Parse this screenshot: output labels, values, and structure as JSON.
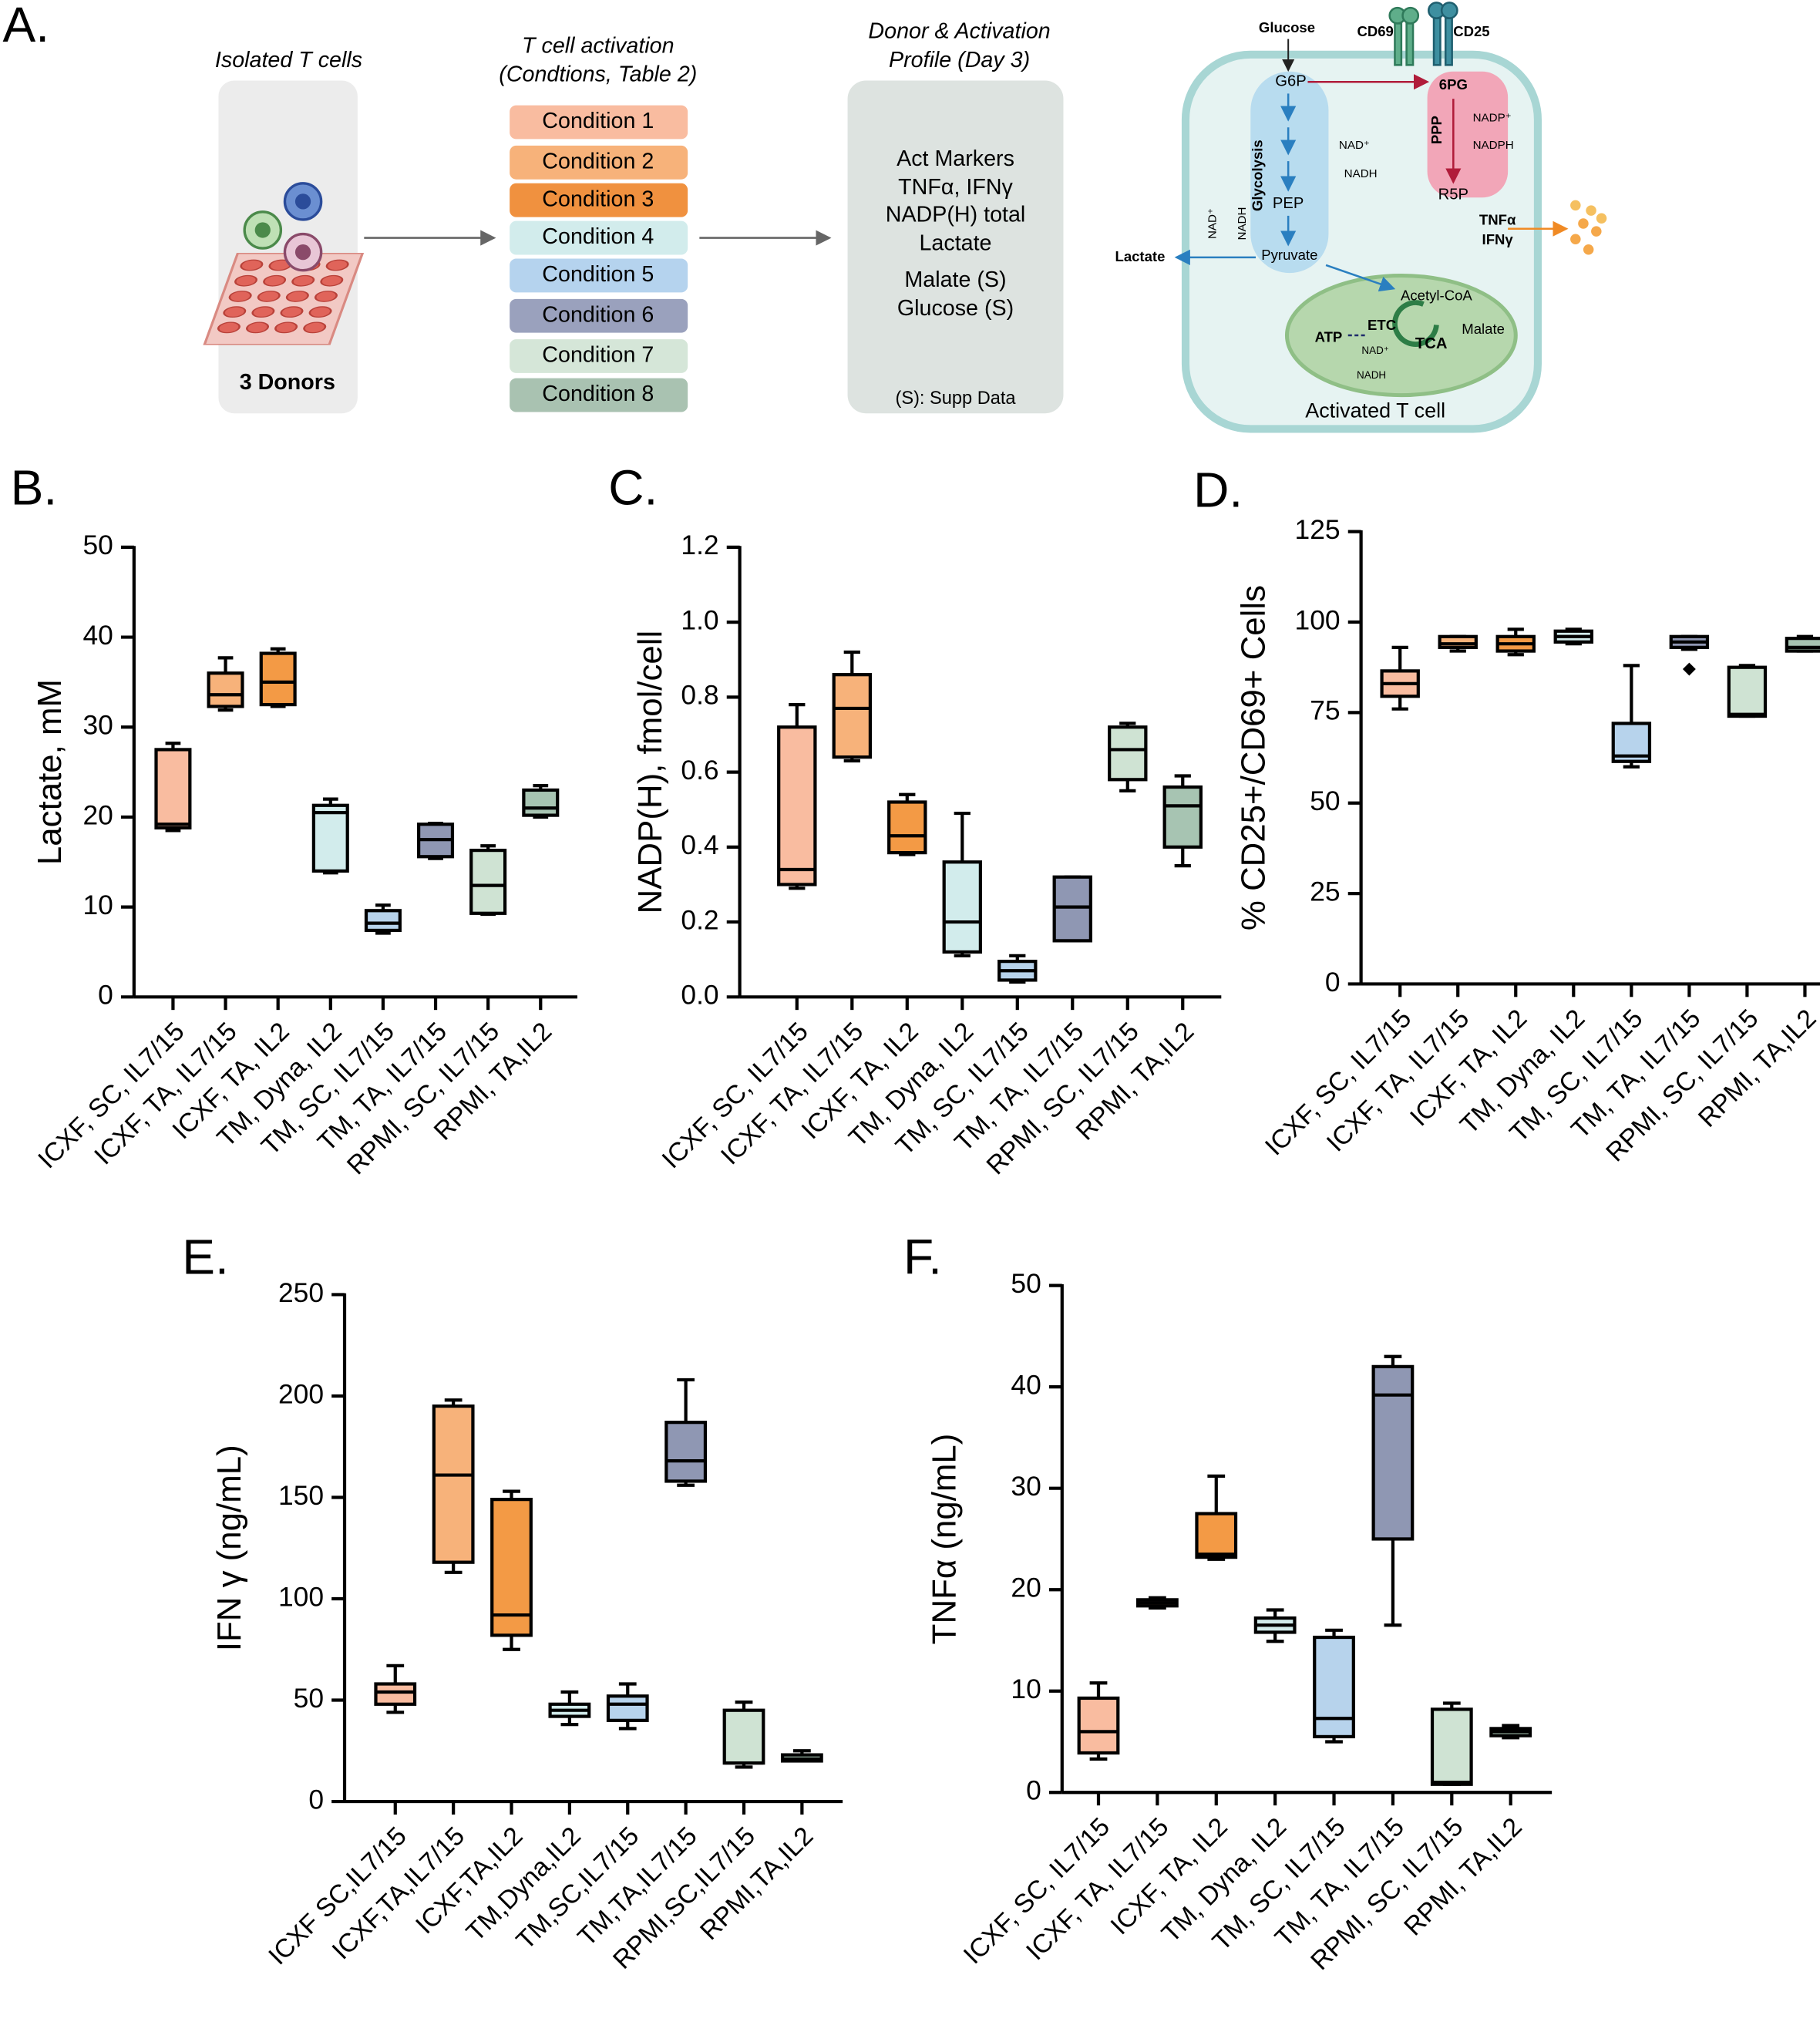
{
  "panel_a": {
    "label": "A.",
    "isolated_title": "Isolated T cells",
    "donors": "3 Donors",
    "activation_title": [
      "T cell activation",
      "(Condtions, Table 2)"
    ],
    "conditions": [
      "Condition 1",
      "Condition 2",
      "Condition 3",
      "Condition 4",
      "Condition 5",
      "Condition 6",
      "Condition 7",
      "Condition 8"
    ],
    "profile_title": [
      "Donor & Activation",
      "Profile (Day 3)"
    ],
    "profile_items": [
      "Act Markers",
      "TNFα, IFNγ",
      "NADP(H) total",
      "Lactate",
      "Malate (S)",
      "Glucose (S)"
    ],
    "profile_note": "(S): Supp Data",
    "cell": {
      "glucose": "Glucose",
      "cd69": "CD69",
      "cd25": "CD25",
      "g6p": "G6P",
      "pg6": "6PG",
      "ppp": "PPP",
      "nadp_plus": "NADP⁺",
      "nadph": "NADPH",
      "nad_plus_1": "NAD⁺",
      "nadh_1": "NADH",
      "glycolysis": "Glycolysis",
      "pep": "PEP",
      "r5p": "R5P",
      "tnfa": "TNFα",
      "ifng": "IFNγ",
      "lactate": "Lactate",
      "pyruvate": "Pyruvate",
      "nad_plus_2": "NAD⁺",
      "nadh_2": "NADH",
      "acetyl_coa": "Acetyl-CoA",
      "malate": "Malate",
      "etc": "ETC",
      "atp": "ATP",
      "tca": "TCA",
      "nad_plus_3": "NAD⁺",
      "nadh_3": "NADH",
      "title": "Activated T cell"
    }
  },
  "chart_data": [
    {
      "type": "box",
      "label": "B.",
      "ylabel": "Lactate, mM",
      "categories": [
        "ICXF, SC, IL7/15",
        "ICXF, TA, IL7/15",
        "ICXF, TA, IL2",
        "TM, Dyna, IL2",
        "TM, SC, IL7/15",
        "TM, TA, IL7/15",
        "RPMI, SC, IL7/15",
        "RPMI, TA,IL2"
      ],
      "colors": [
        "#f9bca0",
        "#f7b27a",
        "#f39a45",
        "#d2ecec",
        "#b7d3ec",
        "#8f97b3",
        "#cfe3d3",
        "#a7c4b2"
      ],
      "min": [
        18.5,
        31.9,
        32.3,
        13.8,
        7.1,
        15.4,
        9.2,
        20
      ],
      "q1": [
        18.8,
        32.3,
        32.5,
        14,
        7.4,
        15.6,
        9.3,
        20.2
      ],
      "median": [
        19.2,
        33.6,
        35,
        20.5,
        8.2,
        17.5,
        12.4,
        21
      ],
      "q3": [
        27.5,
        36,
        38.2,
        21.3,
        9.6,
        19.2,
        16.3,
        23
      ],
      "max": [
        28.2,
        37.7,
        38.7,
        22,
        10.2,
        19.3,
        16.8,
        23.5
      ],
      "ylim": [
        0,
        50
      ],
      "yticks": [
        0,
        10,
        20,
        30,
        40,
        50
      ]
    },
    {
      "type": "box",
      "label": "C.",
      "ylabel": "NADP(H), fmol/cell",
      "categories": [
        "ICXF, SC, IL7/15",
        "ICXF, TA, IL7/15",
        "ICXF, TA, IL2",
        "TM, Dyna, IL2",
        "TM, SC, IL7/15",
        "TM, TA, IL7/15",
        "RPMI, SC, IL7/15",
        "RPMI, TA,IL2"
      ],
      "colors": [
        "#f9bca0",
        "#f7b27a",
        "#f39a45",
        "#d2ecec",
        "#b7d3ec",
        "#8f97b3",
        "#cfe3d3",
        "#a7c4b2"
      ],
      "min": [
        0.29,
        0.63,
        0.38,
        0.11,
        0.04,
        0.15,
        0.55,
        0.35
      ],
      "q1": [
        0.3,
        0.64,
        0.385,
        0.12,
        0.045,
        0.15,
        0.58,
        0.4
      ],
      "median": [
        0.34,
        0.77,
        0.43,
        0.2,
        0.07,
        0.24,
        0.66,
        0.51
      ],
      "q3": [
        0.72,
        0.86,
        0.52,
        0.36,
        0.095,
        0.32,
        0.72,
        0.56
      ],
      "max": [
        0.78,
        0.92,
        0.54,
        0.49,
        0.11,
        0.32,
        0.73,
        0.59
      ],
      "ylim": [
        0,
        1.2
      ],
      "yticks": [
        {
          "value": 0,
          "label": "0.0"
        },
        0.2,
        0.4,
        0.6,
        0.8,
        {
          "value": 1,
          "label": "1.0"
        },
        1.2
      ]
    },
    {
      "type": "box",
      "label": "D.",
      "ylabel": "% CD25+/CD69+ Cells",
      "categories": [
        "ICXF, SC, IL7/15",
        "ICXF, TA, IL7/15",
        "ICXF, TA, IL2",
        "TM, Dyna, IL2",
        "TM, SC, IL7/15",
        "TM, TA, IL7/15",
        "RPMI, SC, IL7/15",
        "RPMI, TA,IL2"
      ],
      "colors": [
        "#f9bca0",
        "#f7b27a",
        "#f39a45",
        "#d2ecec",
        "#b7d3ec",
        "#8f97b3",
        "#cfe3d3",
        "#a7c4b2"
      ],
      "min": [
        76,
        92,
        91,
        94,
        60,
        92.5,
        74,
        92
      ],
      "q1": [
        79.5,
        93,
        92,
        94.5,
        61.5,
        93,
        74,
        92
      ],
      "median": [
        83,
        94,
        94,
        96,
        63,
        94.5,
        74.5,
        93
      ],
      "q3": [
        86.5,
        96,
        96,
        97.5,
        72,
        96,
        87.5,
        95.5
      ],
      "max": [
        93,
        96,
        98,
        98,
        88,
        96,
        88,
        96
      ],
      "outliers": [
        null,
        null,
        null,
        null,
        null,
        87,
        null,
        null
      ],
      "ylim": [
        0,
        125
      ],
      "yticks": [
        0,
        25,
        50,
        75,
        100,
        125
      ]
    },
    {
      "type": "box",
      "label": "E.",
      "ylabel": "IFN γ  (ng/mL)",
      "categories": [
        "ICXF SC,IL7/15",
        "ICXF,TA,IL7/15",
        "ICXF,TA,IL2",
        "TM,Dyna,IL2",
        "TM,SC,IL7/15",
        "TM,TA,IL7/15",
        "RPMI,SC,IL7/15",
        "RPMI,TA,IL2"
      ],
      "colors": [
        "#f9bca0",
        "#f7b27a",
        "#f39a45",
        "#d2ecec",
        "#b7d3ec",
        "#8f97b3",
        "#cfe3d3",
        "#a7c4b2"
      ],
      "min": [
        44,
        113,
        75,
        38,
        36,
        156,
        17,
        20
      ],
      "q1": [
        48,
        118,
        82,
        42,
        40,
        158,
        19,
        20
      ],
      "median": [
        54,
        161,
        92,
        45,
        48,
        168,
        19,
        21
      ],
      "q3": [
        58,
        195,
        149,
        48,
        52,
        187,
        45,
        23
      ],
      "max": [
        67,
        198,
        153,
        54,
        58,
        208,
        49,
        25
      ],
      "ylim": [
        0,
        250
      ],
      "yticks": [
        0,
        50,
        100,
        150,
        200,
        250
      ]
    },
    {
      "type": "box",
      "label": "F.",
      "ylabel": "TNFα (ng/mL)",
      "categories": [
        "ICXF, SC, IL7/15",
        "ICXF, TA, IL7/15",
        "ICXF, TA, IL2",
        "TM, Dyna, IL2",
        "TM, SC, IL7/15",
        "TM, TA, IL7/15",
        "RPMI, SC, IL7/15",
        "RPMI, TA,IL2"
      ],
      "colors": [
        "#f9bca0",
        "#f7b27a",
        "#f39a45",
        "#d2ecec",
        "#b7d3ec",
        "#8f97b3",
        "#cfe3d3",
        "#a7c4b2"
      ],
      "min": [
        3.3,
        18.2,
        23,
        14.9,
        5,
        16.5,
        0.8,
        5.4
      ],
      "q1": [
        3.9,
        18.4,
        23.2,
        15.8,
        5.5,
        25,
        0.8,
        5.6
      ],
      "median": [
        6,
        18.7,
        23.5,
        16.5,
        7.3,
        39.2,
        1,
        6
      ],
      "q3": [
        9.3,
        19,
        27.5,
        17.2,
        15.3,
        42,
        8.2,
        6.3
      ],
      "max": [
        10.8,
        19.2,
        31.2,
        18,
        16,
        43,
        8.8,
        6.6
      ],
      "ylim": [
        0,
        50
      ],
      "yticks": [
        0,
        10,
        20,
        30,
        40,
        50
      ]
    }
  ]
}
